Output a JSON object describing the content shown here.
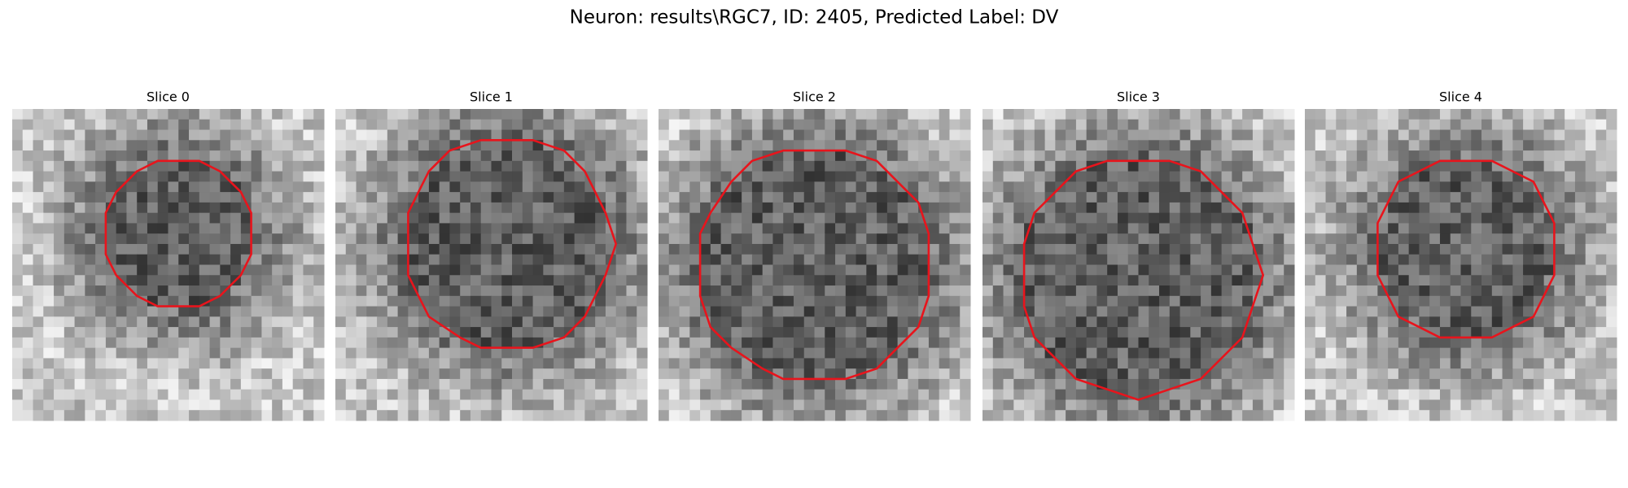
{
  "title": "Neuron: results\\RGC7, ID: 2405, Predicted Label: DV",
  "panels": [
    {
      "title": "Slice 0"
    },
    {
      "title": "Slice 1"
    },
    {
      "title": "Slice 2"
    },
    {
      "title": "Slice 3"
    },
    {
      "title": "Slice 4"
    }
  ]
}
